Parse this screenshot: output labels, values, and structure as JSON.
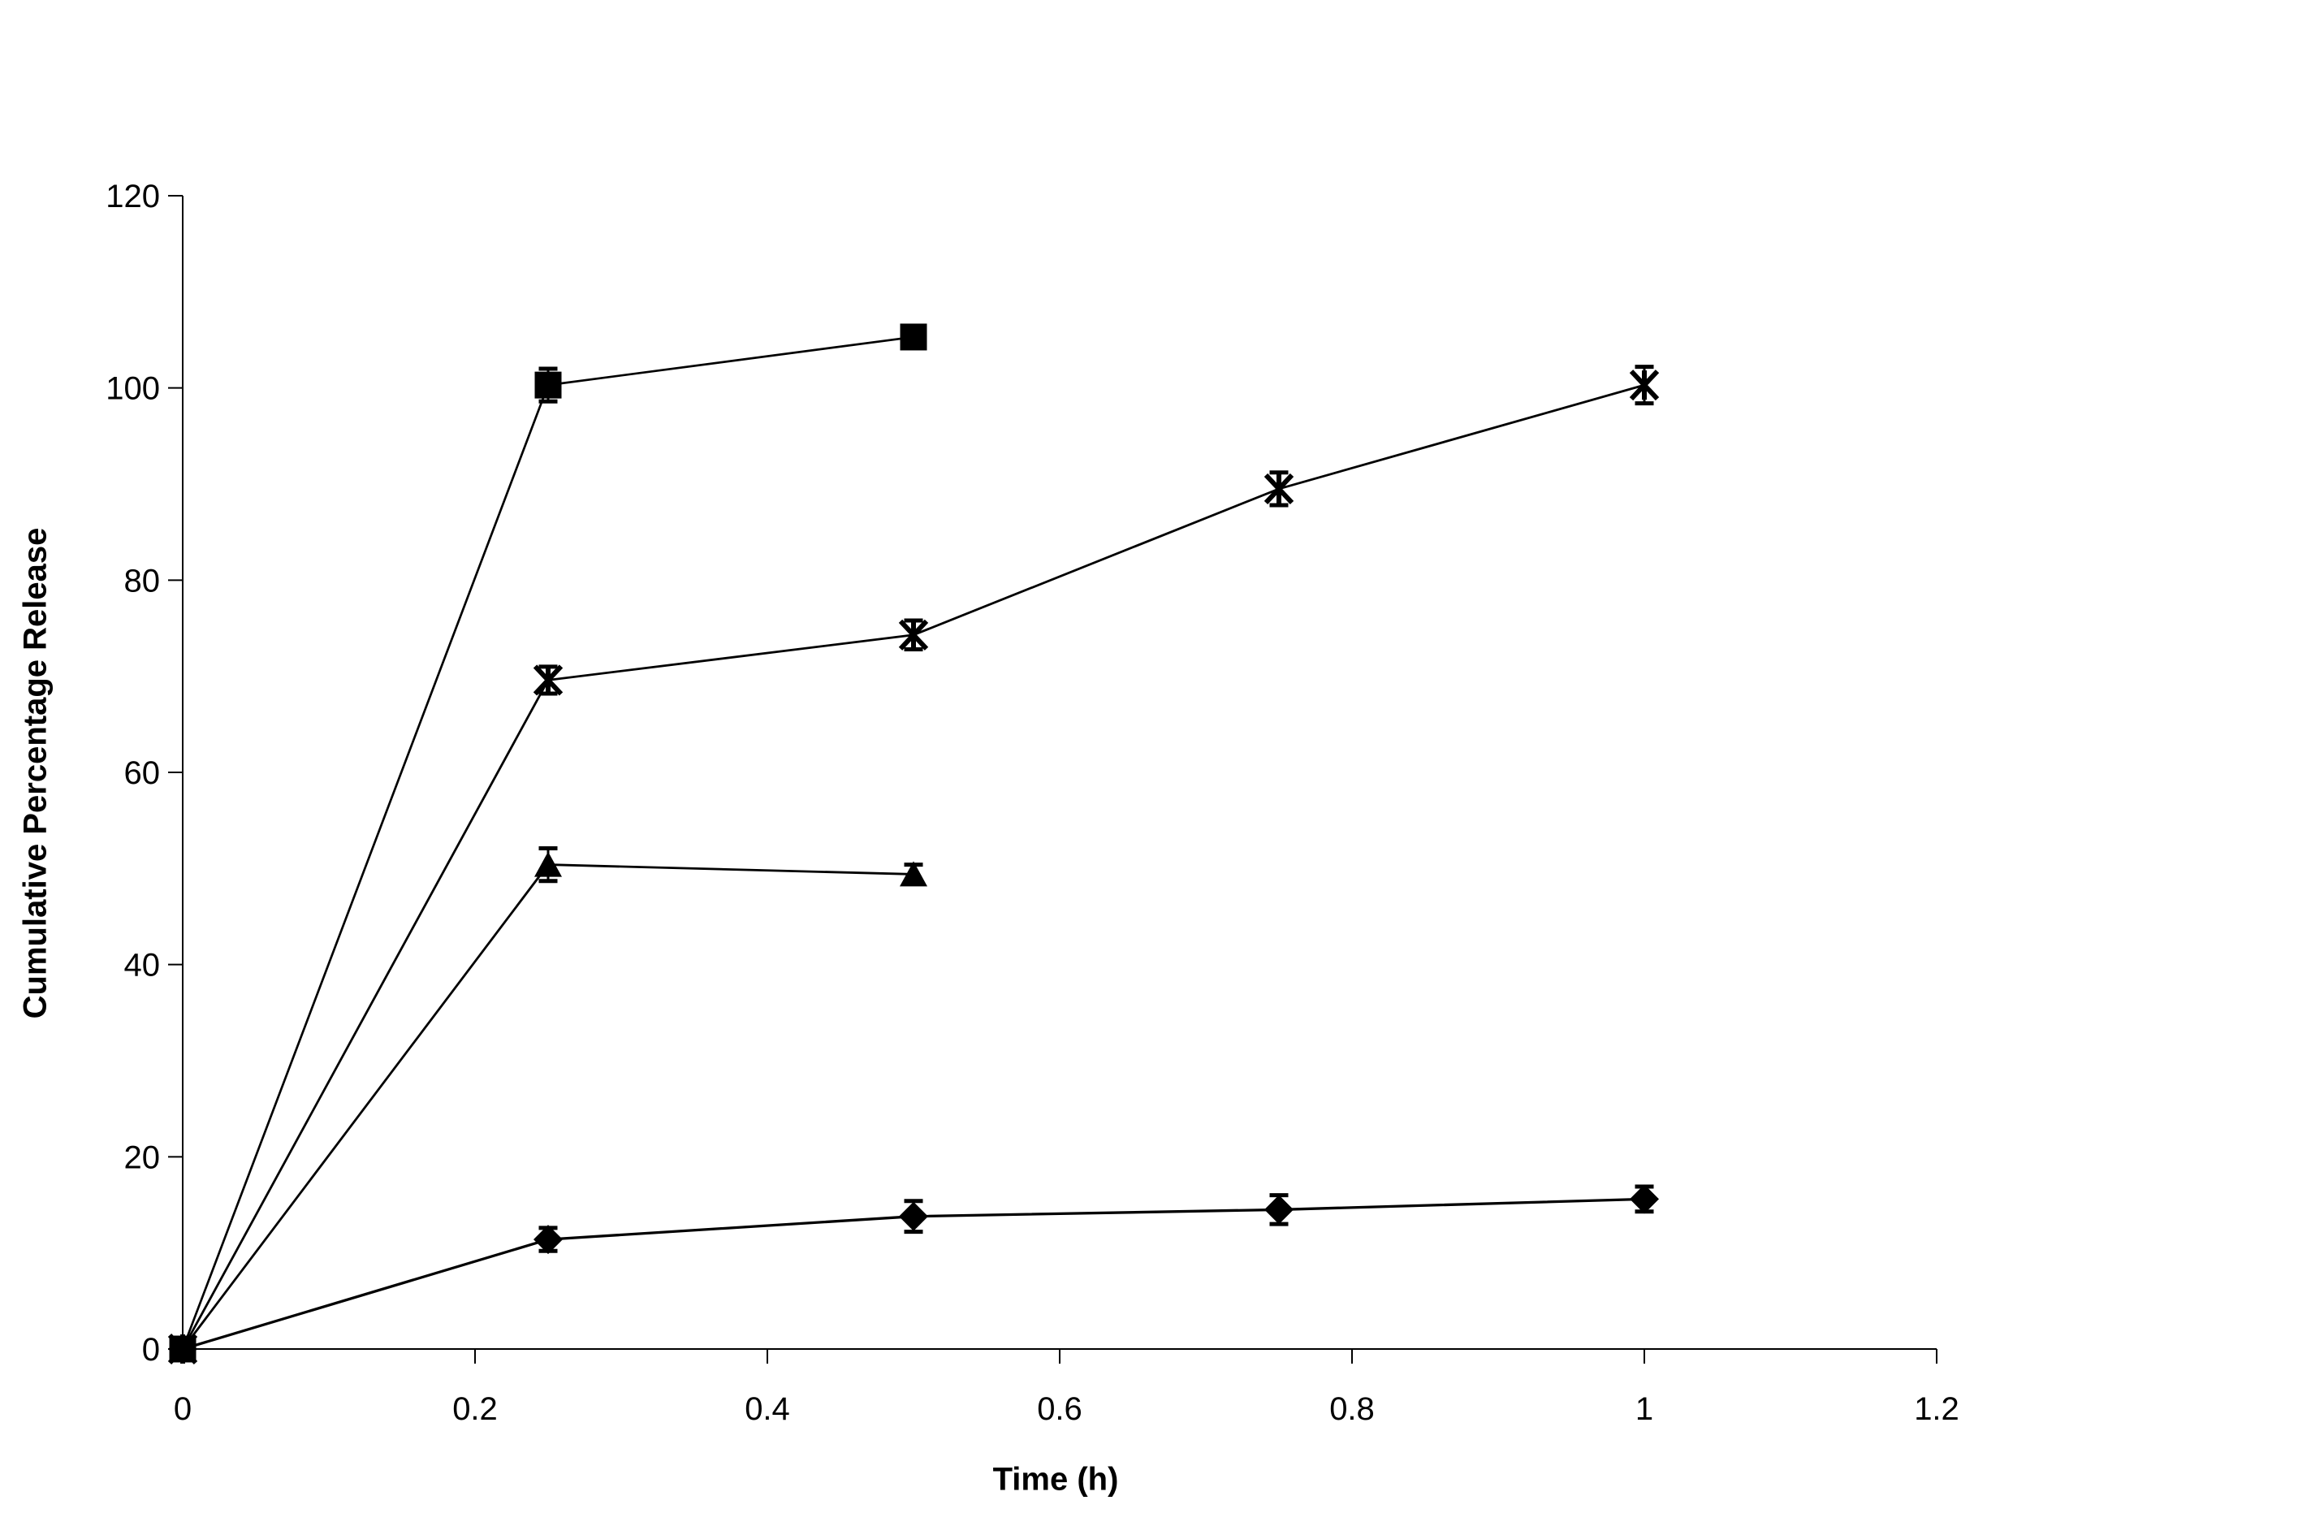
{
  "chart_data": {
    "type": "line",
    "xlabel": "Time (h)",
    "ylabel": "Cumulative Percentage Release",
    "xlim": [
      0,
      1.2
    ],
    "ylim": [
      0,
      120
    ],
    "x_ticks": [
      0,
      0.2,
      0.4,
      0.6,
      0.8,
      1,
      1.2
    ],
    "x_tick_labels": [
      "0",
      "0.2",
      "0.4",
      "0.6",
      "0.8",
      "1",
      "1.2"
    ],
    "y_ticks": [
      0,
      20,
      40,
      60,
      80,
      100,
      120
    ],
    "y_tick_labels": [
      "0",
      "20",
      "40",
      "60",
      "80",
      "100",
      "120"
    ],
    "grid": false,
    "legend": "none",
    "colors": {
      "foreground": "#000000",
      "background": "#ffffff"
    },
    "series": [
      {
        "name": "square-series",
        "marker": "square",
        "x": [
          0,
          0.25,
          0.5
        ],
        "y": [
          0,
          100.3,
          105.3
        ],
        "err": [
          0,
          1.7,
          0
        ]
      },
      {
        "name": "asterisk-series",
        "marker": "asterisk",
        "x": [
          0,
          0.25,
          0.5,
          0.75,
          1
        ],
        "y": [
          0,
          69.6,
          74.3,
          89.5,
          100.3
        ],
        "err": [
          0,
          1.4,
          1.5,
          1.7,
          1.9
        ]
      },
      {
        "name": "triangle-series",
        "marker": "triangle",
        "x": [
          0,
          0.25,
          0.5
        ],
        "y": [
          0,
          50.4,
          49.4
        ],
        "err": [
          0,
          1.7,
          1.0
        ]
      },
      {
        "name": "diamond-series",
        "marker": "diamond",
        "x": [
          0,
          0.25,
          0.5,
          0.75,
          1
        ],
        "y": [
          0,
          11.4,
          13.8,
          14.5,
          15.6
        ],
        "err": [
          0,
          1.2,
          1.6,
          1.5,
          1.3
        ]
      }
    ]
  }
}
